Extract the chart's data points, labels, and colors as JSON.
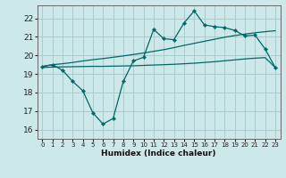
{
  "background_color": "#cde8e8",
  "grid_color": "#aacccc",
  "line_color": "#006868",
  "x_labels": [
    "0",
    "1",
    "2",
    "3",
    "4",
    "5",
    "6",
    "7",
    "8",
    "9",
    "10",
    "11",
    "12",
    "13",
    "14",
    "15",
    "16",
    "17",
    "18",
    "19",
    "20",
    "21",
    "22",
    "23"
  ],
  "xlabel": "Humidex (Indice chaleur)",
  "ylim": [
    15.5,
    22.7
  ],
  "yticks": [
    16,
    17,
    18,
    19,
    20,
    21,
    22
  ],
  "xlim": [
    -0.5,
    23.5
  ],
  "main_line": [
    19.4,
    19.5,
    19.2,
    18.6,
    18.1,
    16.9,
    16.3,
    16.6,
    18.6,
    19.7,
    19.9,
    21.4,
    20.9,
    20.85,
    21.75,
    22.4,
    21.65,
    21.55,
    21.5,
    21.35,
    21.05,
    21.1,
    20.35,
    19.35
  ],
  "upper_line": [
    19.4,
    19.5,
    19.55,
    19.62,
    19.7,
    19.77,
    19.83,
    19.9,
    19.97,
    20.05,
    20.13,
    20.22,
    20.31,
    20.42,
    20.54,
    20.65,
    20.76,
    20.87,
    20.98,
    21.07,
    21.15,
    21.22,
    21.28,
    21.33
  ],
  "lower_line": [
    19.35,
    19.37,
    19.38,
    19.39,
    19.4,
    19.41,
    19.41,
    19.42,
    19.43,
    19.44,
    19.46,
    19.48,
    19.5,
    19.52,
    19.55,
    19.58,
    19.62,
    19.66,
    19.71,
    19.76,
    19.81,
    19.85,
    19.88,
    19.35
  ]
}
